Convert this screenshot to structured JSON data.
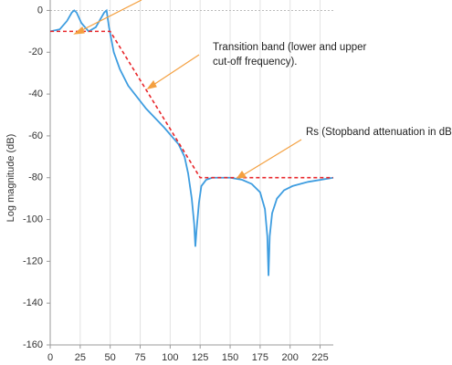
{
  "chart_data": {
    "type": "line",
    "y_label": "Log magnitude (dB)",
    "xlim": [
      0,
      236
    ],
    "ylim": [
      -160,
      5
    ],
    "xticks": [
      0,
      25,
      50,
      75,
      100,
      125,
      150,
      175,
      200,
      225
    ],
    "yticks": [
      0,
      -20,
      -40,
      -60,
      -80,
      -100,
      -120,
      -140,
      -160
    ],
    "grid": true,
    "series": [
      {
        "color": "#3e9de0",
        "dash": false,
        "x": [
          0,
          8,
          14,
          18,
          20,
          22,
          26,
          32,
          38,
          42,
          45,
          47,
          49,
          53,
          58,
          65,
          80,
          95,
          107,
          112,
          115,
          118,
          120,
          121,
          122,
          124,
          126,
          130,
          135,
          141,
          150,
          160,
          168,
          175,
          179,
          181,
          182,
          183,
          185,
          189,
          195,
          202,
          215,
          236
        ],
        "values": [
          -10,
          -9,
          -5,
          -1,
          0,
          -1,
          -6,
          -10,
          -8,
          -4,
          -1,
          0,
          -8,
          -20,
          -28,
          -36,
          -47,
          -56,
          -64,
          -70,
          -78,
          -90,
          -102,
          -113,
          -105,
          -92,
          -84,
          -81,
          -80,
          -80,
          -80,
          -81,
          -83,
          -87,
          -95,
          -108,
          -127,
          -108,
          -97,
          -90,
          -86,
          -84,
          -82,
          -80
        ]
      },
      {
        "color": "#e8262a",
        "dash": true,
        "x": [
          0,
          50,
          125,
          236
        ],
        "values": [
          -10,
          -10,
          -80,
          -80
        ]
      }
    ],
    "annotations": [
      {
        "lines": [
          "Transition band (lower and upper",
          "cut-off frequency)."
        ]
      },
      {
        "lines": [
          "Rs (Stopband attenuation in dB)"
        ]
      }
    ]
  }
}
